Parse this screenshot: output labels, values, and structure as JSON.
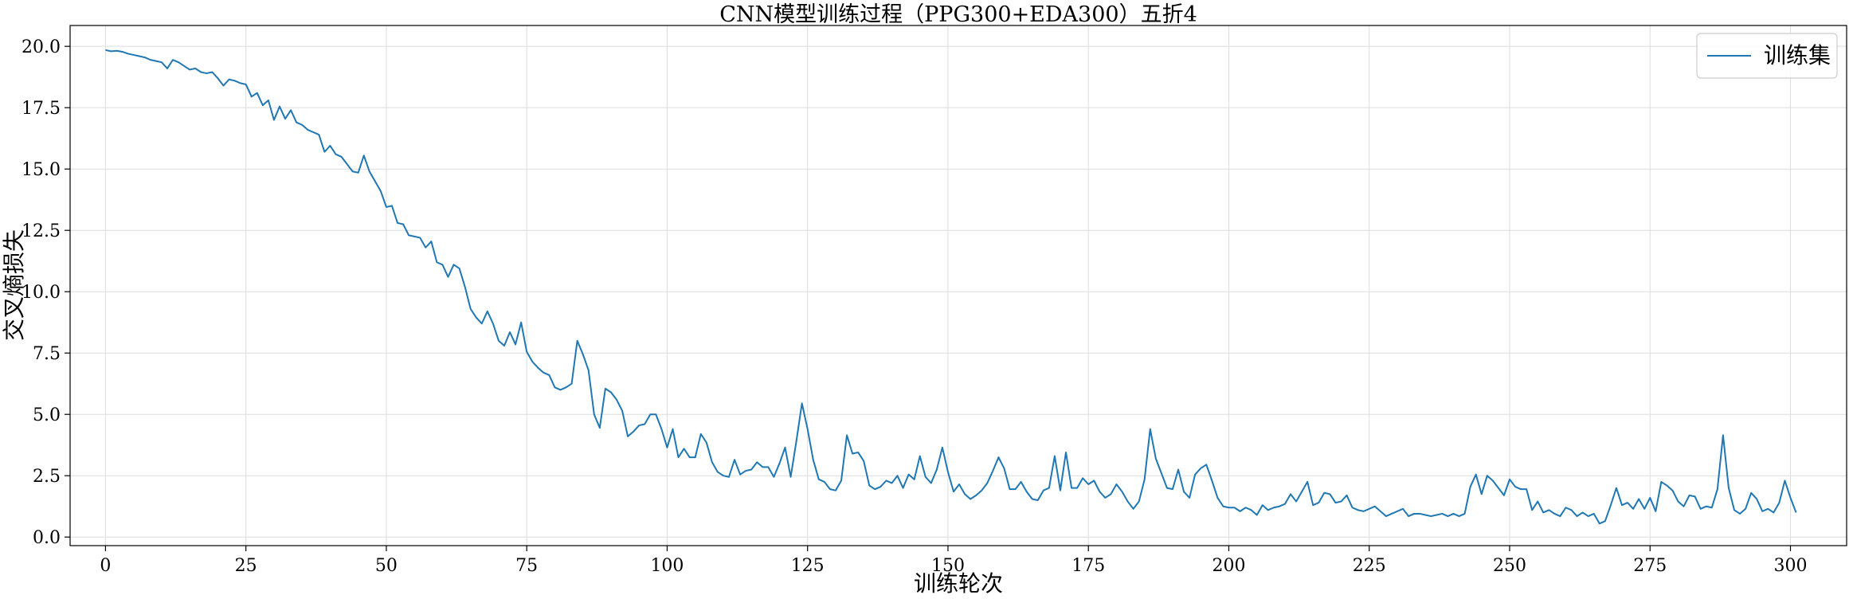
{
  "chart_data": {
    "type": "line",
    "title": "CNN模型训练过程（PPG300+EDA300）五折4",
    "xlabel": "训练轮次",
    "ylabel": "交叉熵损失",
    "xlim": [
      -6.3,
      310
    ],
    "ylim": [
      -0.35,
      20.85
    ],
    "xticks": [
      0,
      25,
      50,
      75,
      100,
      125,
      150,
      175,
      200,
      225,
      250,
      275,
      300
    ],
    "yticks": [
      0.0,
      2.5,
      5.0,
      7.5,
      10.0,
      12.5,
      15.0,
      17.5,
      20.0
    ],
    "ytick_labels": [
      "0.0",
      "2.5",
      "5.0",
      "7.5",
      "10.0",
      "12.5",
      "15.0",
      "17.5",
      "20.0"
    ],
    "grid": true,
    "legend_position": "top-right",
    "colors": {
      "series": "#1f77b4",
      "grid": "#dddddd",
      "axes": "#000000"
    },
    "series": [
      {
        "name": "训练集",
        "x_start": 0,
        "x_step": 1,
        "values": [
          19.85,
          19.8,
          19.82,
          19.78,
          19.7,
          19.65,
          19.6,
          19.55,
          19.45,
          19.4,
          19.35,
          19.1,
          19.45,
          19.35,
          19.2,
          19.05,
          19.1,
          18.95,
          18.9,
          18.95,
          18.7,
          18.4,
          18.65,
          18.6,
          18.5,
          18.45,
          17.95,
          18.1,
          17.6,
          17.8,
          17.0,
          17.55,
          17.05,
          17.4,
          16.9,
          16.8,
          16.6,
          16.5,
          16.4,
          15.7,
          15.95,
          15.6,
          15.5,
          15.2,
          14.9,
          14.85,
          15.55,
          14.9,
          14.5,
          14.1,
          13.45,
          13.5,
          12.8,
          12.75,
          12.3,
          12.25,
          12.2,
          11.8,
          12.05,
          11.2,
          11.1,
          10.6,
          11.1,
          10.95,
          10.2,
          9.3,
          8.95,
          8.7,
          9.2,
          8.7,
          8.0,
          7.8,
          8.35,
          7.85,
          8.75,
          7.55,
          7.15,
          6.9,
          6.7,
          6.6,
          6.1,
          6.0,
          6.1,
          6.25,
          8.0,
          7.45,
          6.8,
          5.0,
          4.45,
          6.05,
          5.9,
          5.6,
          5.15,
          4.1,
          4.3,
          4.55,
          4.6,
          5.0,
          5.0,
          4.4,
          3.65,
          4.4,
          3.25,
          3.6,
          3.25,
          3.25,
          4.2,
          3.85,
          3.05,
          2.65,
          2.5,
          2.45,
          3.15,
          2.55,
          2.7,
          2.75,
          3.05,
          2.85,
          2.85,
          2.45,
          3.0,
          3.65,
          2.45,
          3.9,
          5.45,
          4.4,
          3.15,
          2.35,
          2.25,
          1.95,
          1.9,
          2.3,
          4.15,
          3.4,
          3.45,
          3.1,
          2.1,
          1.95,
          2.05,
          2.3,
          2.2,
          2.5,
          2.0,
          2.55,
          2.35,
          3.3,
          2.45,
          2.2,
          2.75,
          3.65,
          2.65,
          1.85,
          2.15,
          1.75,
          1.55,
          1.7,
          1.9,
          2.2,
          2.7,
          3.25,
          2.8,
          1.95,
          1.95,
          2.25,
          1.85,
          1.55,
          1.5,
          1.9,
          2.0,
          3.3,
          1.9,
          3.45,
          2.0,
          2.0,
          2.4,
          2.15,
          2.3,
          1.85,
          1.6,
          1.75,
          2.15,
          1.85,
          1.45,
          1.15,
          1.45,
          2.35,
          4.4,
          3.2,
          2.6,
          2.0,
          1.95,
          2.75,
          1.85,
          1.6,
          2.55,
          2.8,
          2.95,
          2.3,
          1.6,
          1.25,
          1.2,
          1.2,
          1.05,
          1.2,
          1.1,
          0.9,
          1.3,
          1.1,
          1.2,
          1.25,
          1.35,
          1.75,
          1.45,
          1.85,
          2.25,
          1.3,
          1.4,
          1.8,
          1.75,
          1.4,
          1.45,
          1.7,
          1.2,
          1.1,
          1.05,
          1.15,
          1.25,
          1.05,
          0.85,
          0.95,
          1.05,
          1.15,
          0.85,
          0.95,
          0.95,
          0.9,
          0.85,
          0.9,
          0.95,
          0.85,
          0.95,
          0.85,
          0.95,
          2.05,
          2.55,
          1.75,
          2.5,
          2.3,
          2.0,
          1.7,
          2.35,
          2.05,
          1.95,
          1.95,
          1.1,
          1.45,
          1.0,
          1.1,
          0.95,
          0.85,
          1.2,
          1.1,
          0.85,
          1.0,
          0.85,
          0.95,
          0.55,
          0.65,
          1.3,
          2.0,
          1.3,
          1.4,
          1.15,
          1.55,
          1.15,
          1.6,
          1.05,
          2.25,
          2.1,
          1.9,
          1.45,
          1.25,
          1.7,
          1.65,
          1.15,
          1.25,
          1.2,
          1.95,
          4.15,
          2.0,
          1.1,
          0.95,
          1.15,
          1.8,
          1.55,
          1.05,
          1.15,
          1.0,
          1.4,
          2.3,
          1.6,
          1.0
        ]
      }
    ]
  }
}
